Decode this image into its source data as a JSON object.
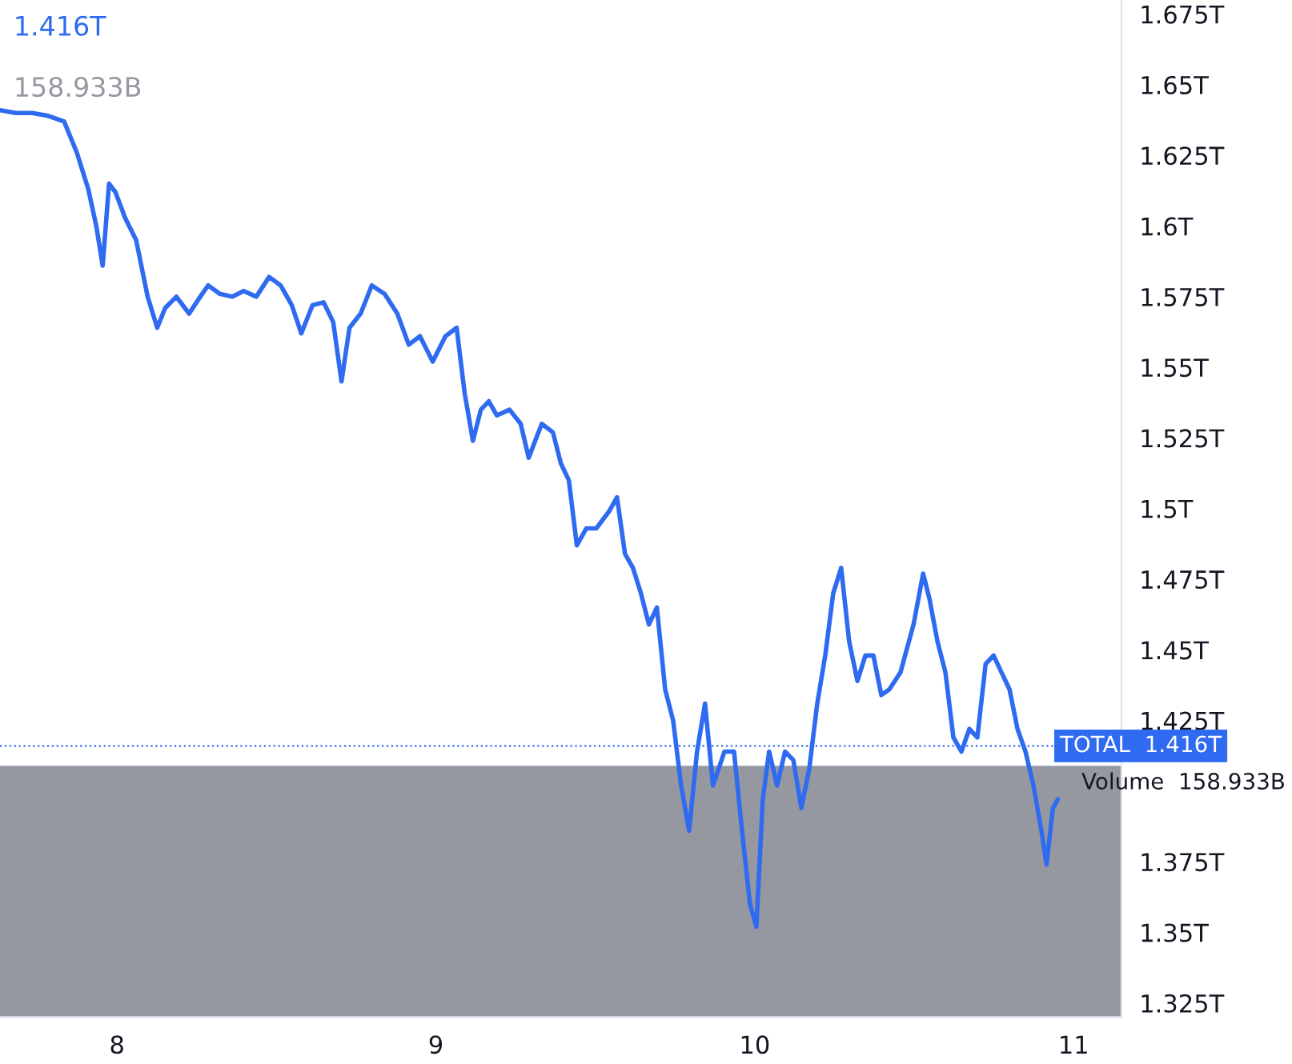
{
  "chart_data": {
    "type": "line",
    "x": [
      7.633,
      7.683,
      7.734,
      7.784,
      7.834,
      7.874,
      7.91,
      7.935,
      7.955,
      7.975,
      7.995,
      8.025,
      8.06,
      8.096,
      8.126,
      8.151,
      8.186,
      8.226,
      8.261,
      8.286,
      8.322,
      8.362,
      8.397,
      8.437,
      8.477,
      8.513,
      8.548,
      8.578,
      8.613,
      8.648,
      8.678,
      8.704,
      8.729,
      8.764,
      8.799,
      8.839,
      8.879,
      8.915,
      8.95,
      8.99,
      9.03,
      9.065,
      9.09,
      9.116,
      9.141,
      9.166,
      9.191,
      9.231,
      9.266,
      9.291,
      9.332,
      9.367,
      9.392,
      9.417,
      9.442,
      9.472,
      9.503,
      9.543,
      9.568,
      9.593,
      9.618,
      9.643,
      9.668,
      9.693,
      9.719,
      9.744,
      9.769,
      9.794,
      9.819,
      9.844,
      9.869,
      9.905,
      9.935,
      9.96,
      9.985,
      10.005,
      10.025,
      10.045,
      10.07,
      10.095,
      10.121,
      10.146,
      10.171,
      10.196,
      10.221,
      10.246,
      10.271,
      10.296,
      10.322,
      10.347,
      10.372,
      10.397,
      10.422,
      10.457,
      10.498,
      10.528,
      10.548,
      10.573,
      10.598,
      10.623,
      10.648,
      10.673,
      10.698,
      10.724,
      10.749,
      10.774,
      10.799,
      10.824,
      10.849,
      10.874,
      10.899,
      10.915,
      10.935,
      10.95
    ],
    "series": [
      {
        "color": "#2f6bf0",
        "values": [
          1.641,
          1.64,
          1.64,
          1.639,
          1.637,
          1.626,
          1.613,
          1.6,
          1.586,
          1.615,
          1.612,
          1.603,
          1.595,
          1.575,
          1.564,
          1.571,
          1.575,
          1.569,
          1.575,
          1.579,
          1.576,
          1.575,
          1.577,
          1.575,
          1.582,
          1.579,
          1.572,
          1.562,
          1.572,
          1.573,
          1.566,
          1.545,
          1.564,
          1.569,
          1.579,
          1.576,
          1.569,
          1.558,
          1.561,
          1.552,
          1.561,
          1.564,
          1.541,
          1.524,
          1.535,
          1.538,
          1.533,
          1.535,
          1.53,
          1.518,
          1.53,
          1.527,
          1.516,
          1.51,
          1.487,
          1.493,
          1.493,
          1.499,
          1.504,
          1.484,
          1.479,
          1.47,
          1.459,
          1.465,
          1.436,
          1.425,
          1.402,
          1.386,
          1.414,
          1.431,
          1.402,
          1.414,
          1.414,
          1.386,
          1.36,
          1.352,
          1.397,
          1.414,
          1.402,
          1.414,
          1.411,
          1.394,
          1.408,
          1.431,
          1.448,
          1.47,
          1.479,
          1.453,
          1.439,
          1.448,
          1.448,
          1.434,
          1.436,
          1.442,
          1.459,
          1.477,
          1.468,
          1.453,
          1.442,
          1.419,
          1.414,
          1.422,
          1.419,
          1.445,
          1.448,
          1.442,
          1.436,
          1.422,
          1.414,
          1.402,
          1.386,
          1.374,
          1.394,
          1.397
        ]
      }
    ],
    "xlim": [
      7.633,
      11.15
    ],
    "xticks": [
      8,
      9,
      10,
      11
    ],
    "ylim": [
      1.32,
      1.68
    ],
    "yticks": [
      {
        "value": 1.325,
        "label": "1.325T"
      },
      {
        "value": 1.35,
        "label": "1.35T"
      },
      {
        "value": 1.375,
        "label": "1.375T"
      },
      {
        "value": 1.425,
        "label": "1.425T"
      },
      {
        "value": 1.45,
        "label": "1.45T"
      },
      {
        "value": 1.475,
        "label": "1.475T"
      },
      {
        "value": 1.5,
        "label": "1.5T"
      },
      {
        "value": 1.525,
        "label": "1.525T"
      },
      {
        "value": 1.55,
        "label": "1.55T"
      },
      {
        "value": 1.575,
        "label": "1.575T"
      },
      {
        "value": 1.6,
        "label": "1.6T"
      },
      {
        "value": 1.625,
        "label": "1.625T"
      },
      {
        "value": 1.65,
        "label": "1.65T"
      },
      {
        "value": 1.675,
        "label": "1.675T"
      }
    ],
    "ref_lines": [
      {
        "axis": "y",
        "value": 1.416,
        "label": "TOTAL  1.416T",
        "color": "#2f6bf0",
        "line_style": "dotted"
      }
    ],
    "bands": [
      {
        "axis": "y",
        "from": 1.32,
        "to": 1.409,
        "label": "Volume  158.933B",
        "color": "#9598a1"
      }
    ],
    "annotations": [
      "1.416T",
      "158.933B"
    ],
    "grid": false,
    "marker": "none",
    "line_style": "solid"
  }
}
